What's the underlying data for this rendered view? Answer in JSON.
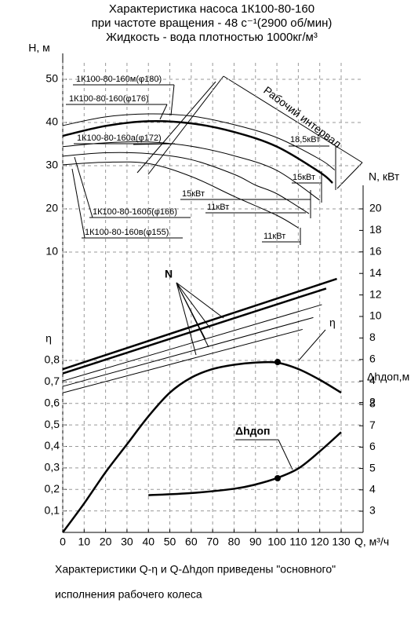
{
  "title": [
    "Характеристика насоса 1К100-80-160",
    "при частоте вращения - 48 с⁻¹(2900 об/мин)",
    "Жидкость - вода плотностью 1000кг/м³"
  ],
  "footer": [
    "Характеристики Q-η и Q-Δhдоп приведены  \"основного\"",
    "исполнения рабочего колеса"
  ],
  "chart_data": [
    {
      "type": "line",
      "y_label": "H, м",
      "x_label": "Q, м³/ч",
      "color": "#000000",
      "grid": true,
      "xlim": [
        0,
        130
      ],
      "xticks": [
        0,
        10,
        20,
        30,
        40,
        50,
        60,
        70,
        80,
        90,
        100,
        110,
        120,
        130
      ],
      "ylim": [
        0,
        55
      ],
      "yticks": [
        10,
        20,
        30,
        40,
        50
      ],
      "series": [
        {
          "name": "1К100-80-160м(φ180)",
          "line_width": 1,
          "x": [
            0,
            20,
            40,
            60,
            80,
            100,
            120,
            127
          ],
          "values": [
            39.3,
            41.3,
            42,
            41.5,
            39.5,
            36.5,
            31.5,
            29
          ]
        },
        {
          "name": "1К100-80-160(φ176)",
          "line_width": 2.5,
          "x": [
            0,
            20,
            40,
            60,
            80,
            100,
            120,
            126
          ],
          "values": [
            36.9,
            39.2,
            40.3,
            39.8,
            37.8,
            34.4,
            28.5,
            26
          ]
        },
        {
          "name": "1К100-80-160а(φ172)",
          "line_width": 1,
          "x": [
            0,
            20,
            40,
            60,
            80,
            100,
            120
          ],
          "values": [
            34.4,
            35.3,
            35.5,
            34.5,
            32.3,
            28.9,
            22
          ]
        },
        {
          "name": "1К100-80-160б(φ166)",
          "line_width": 1,
          "x": [
            0,
            20,
            40,
            60,
            80,
            90,
            100,
            115
          ],
          "values": [
            32.2,
            33,
            32.8,
            31.4,
            28,
            25.5,
            23.5,
            18.9
          ]
        },
        {
          "name": "1К100-80-160в(φ155)",
          "line_width": 1,
          "x": [
            0,
            20,
            40,
            60,
            80,
            100,
            110
          ],
          "values": [
            30.2,
            30.8,
            30.5,
            27.5,
            22.9,
            18.5,
            15.6
          ]
        }
      ],
      "annotations": [
        "Рабочий интервал",
        "18,5кВт",
        "15кВт",
        "15кВт",
        "11кВт",
        "11кВт"
      ]
    },
    {
      "type": "line",
      "y_label": "η",
      "color": "#000000",
      "grid": true,
      "xlim": [
        0,
        130
      ],
      "ylim": [
        0,
        0.8
      ],
      "yticks": [
        {
          "value": 0.1,
          "label": "0,1"
        },
        {
          "value": 0.2,
          "label": "0,2"
        },
        {
          "value": 0.3,
          "label": "0,3"
        },
        {
          "value": 0.4,
          "label": "0,4"
        },
        {
          "value": 0.5,
          "label": "0,5"
        },
        {
          "value": 0.6,
          "label": "0,6"
        },
        {
          "value": 0.7,
          "label": "0,7"
        },
        {
          "value": 0.8,
          "label": "0,8"
        }
      ],
      "series": [
        {
          "name": "η",
          "line_width": 2.5,
          "x": [
            0,
            10,
            20,
            30,
            40,
            50,
            60,
            70,
            80,
            90,
            100,
            110,
            120,
            130
          ],
          "values": [
            0,
            0.135,
            0.28,
            0.41,
            0.54,
            0.65,
            0.72,
            0.76,
            0.78,
            0.79,
            0.79,
            0.76,
            0.71,
            0.65
          ]
        }
      ]
    },
    {
      "type": "line",
      "y_label": "N, кВт",
      "color": "#000000",
      "grid": false,
      "xlim": [
        0,
        130
      ],
      "ylim": [
        0,
        20
      ],
      "yticks": [
        2,
        4,
        6,
        8,
        10,
        12,
        14,
        16,
        18,
        20
      ],
      "annotations": [
        "N"
      ],
      "series": [
        {
          "line_width": 2.5,
          "x": [
            0,
            128
          ],
          "values": [
            5.1,
            13.5
          ]
        },
        {
          "line_width": 2.5,
          "x": [
            0,
            123
          ],
          "values": [
            4.7,
            12.6
          ]
        },
        {
          "line_width": 1,
          "x": [
            0,
            121
          ],
          "values": [
            4.0,
            11.1
          ]
        },
        {
          "line_width": 1,
          "x": [
            0,
            117
          ],
          "values": [
            3.5,
            9.9
          ]
        },
        {
          "line_width": 1,
          "x": [
            0,
            112
          ],
          "values": [
            2.9,
            8.8
          ]
        }
      ]
    },
    {
      "type": "line",
      "y_label": "Δhдоп,м",
      "color": "#000000",
      "grid": false,
      "xlim": [
        0,
        130
      ],
      "ylim": [
        3,
        8
      ],
      "yticks": [
        3,
        4,
        5,
        6,
        7,
        8
      ],
      "series": [
        {
          "name": "Δhдоп",
          "line_width": 2.5,
          "x": [
            40,
            60,
            80,
            90,
            100,
            110,
            120,
            130
          ],
          "values": [
            3.75,
            3.85,
            4.05,
            4.25,
            4.55,
            5.0,
            5.8,
            6.7
          ]
        }
      ]
    }
  ]
}
